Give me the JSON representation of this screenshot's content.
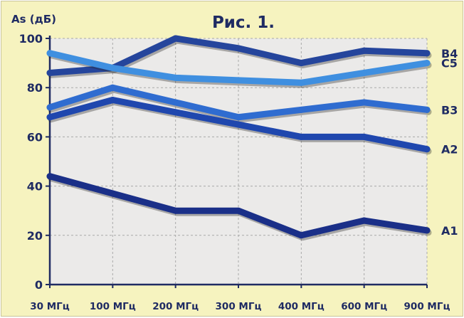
{
  "chart_data": {
    "type": "line",
    "title": "Рис. 1.",
    "ylabel": "As (дБ)",
    "xlabel": "",
    "categories": [
      "30 МГц",
      "100 МГц",
      "200 МГц",
      "300 МГц",
      "400 МГц",
      "600 МГц",
      "900 МГц"
    ],
    "ylim": [
      0,
      100
    ],
    "yticks": [
      0,
      20,
      40,
      60,
      80,
      100
    ],
    "grid": true,
    "legend": "series labels at right end of lines",
    "series": [
      {
        "name": "B4",
        "color": "#25459c",
        "values": [
          86,
          88,
          100,
          96,
          90,
          95,
          94
        ]
      },
      {
        "name": "C5",
        "color": "#3f8fe0",
        "values": [
          94,
          88,
          84,
          83,
          82,
          86,
          90
        ]
      },
      {
        "name": "B3",
        "color": "#2f6cd0",
        "values": [
          72,
          80,
          74,
          68,
          71,
          74,
          71
        ]
      },
      {
        "name": "A2",
        "color": "#1f47ae",
        "values": [
          68,
          75,
          70,
          65,
          60,
          60,
          55
        ]
      },
      {
        "name": "A1",
        "color": "#1a2f88",
        "values": [
          44,
          37,
          30,
          30,
          20,
          26,
          22
        ]
      }
    ]
  },
  "colors": {
    "background": "#f6f3bf",
    "plot_area": "#ebeae9",
    "grid": "#a9a9a9",
    "axis": "#1f2b63",
    "text": "#1f2b63"
  }
}
